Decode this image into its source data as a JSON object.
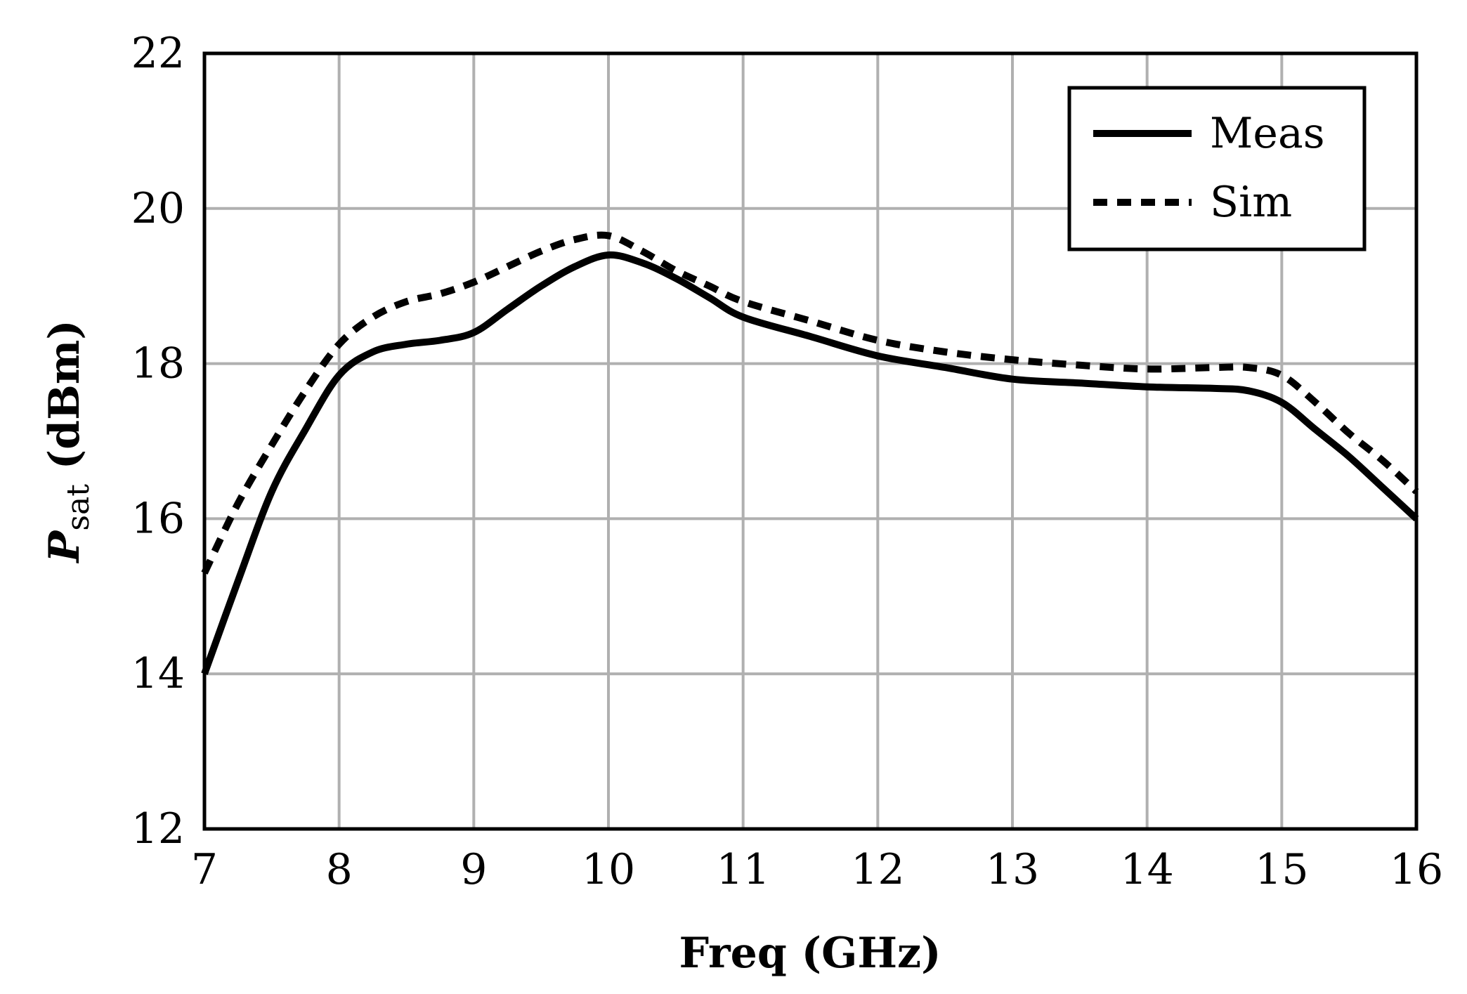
{
  "chart_data": {
    "type": "line",
    "xlabel": "Freq (GHz)",
    "ylabel": {
      "symbol": "P",
      "subscript": "sat",
      "unit": " (dBm)"
    },
    "xlim": [
      7,
      16
    ],
    "ylim": [
      12,
      22
    ],
    "xticks": [
      "7",
      "8",
      "9",
      "10",
      "11",
      "12",
      "13",
      "14",
      "15",
      "16"
    ],
    "yticks": [
      "12",
      "14",
      "16",
      "18",
      "20",
      "22"
    ],
    "grid": true,
    "legend_position": "top-right",
    "series": [
      {
        "name": "Meas",
        "style": "solid",
        "color": "#000000",
        "x": [
          7,
          7.25,
          7.5,
          7.75,
          8,
          8.25,
          8.5,
          8.75,
          9,
          9.25,
          9.5,
          9.75,
          10,
          10.25,
          10.5,
          10.75,
          11,
          11.5,
          12,
          12.5,
          13,
          13.5,
          14,
          14.5,
          14.75,
          15,
          15.25,
          15.5,
          15.75,
          16
        ],
        "y": [
          14.0,
          15.2,
          16.35,
          17.15,
          17.85,
          18.15,
          18.25,
          18.3,
          18.4,
          18.7,
          19.0,
          19.25,
          19.4,
          19.3,
          19.1,
          18.85,
          18.6,
          18.35,
          18.1,
          17.95,
          17.8,
          17.75,
          17.7,
          17.68,
          17.65,
          17.5,
          17.15,
          16.8,
          16.4,
          16.0
        ]
      },
      {
        "name": "Sim",
        "style": "dashed",
        "color": "#000000",
        "x": [
          7,
          7.25,
          7.5,
          7.75,
          8,
          8.25,
          8.5,
          8.75,
          9,
          9.25,
          9.5,
          9.75,
          10,
          10.25,
          10.5,
          10.75,
          11,
          11.5,
          12,
          12.5,
          13,
          13.5,
          14,
          14.5,
          14.75,
          15,
          15.25,
          15.5,
          15.75,
          16
        ],
        "y": [
          15.3,
          16.2,
          16.95,
          17.65,
          18.25,
          18.6,
          18.8,
          18.9,
          19.05,
          19.25,
          19.45,
          19.6,
          19.65,
          19.45,
          19.2,
          19.0,
          18.8,
          18.55,
          18.3,
          18.15,
          18.05,
          17.98,
          17.93,
          17.95,
          17.95,
          17.85,
          17.5,
          17.1,
          16.75,
          16.35
        ]
      }
    ],
    "legend": [
      {
        "name": "Meas",
        "style": "solid"
      },
      {
        "name": "Sim",
        "style": "dashed"
      }
    ]
  }
}
